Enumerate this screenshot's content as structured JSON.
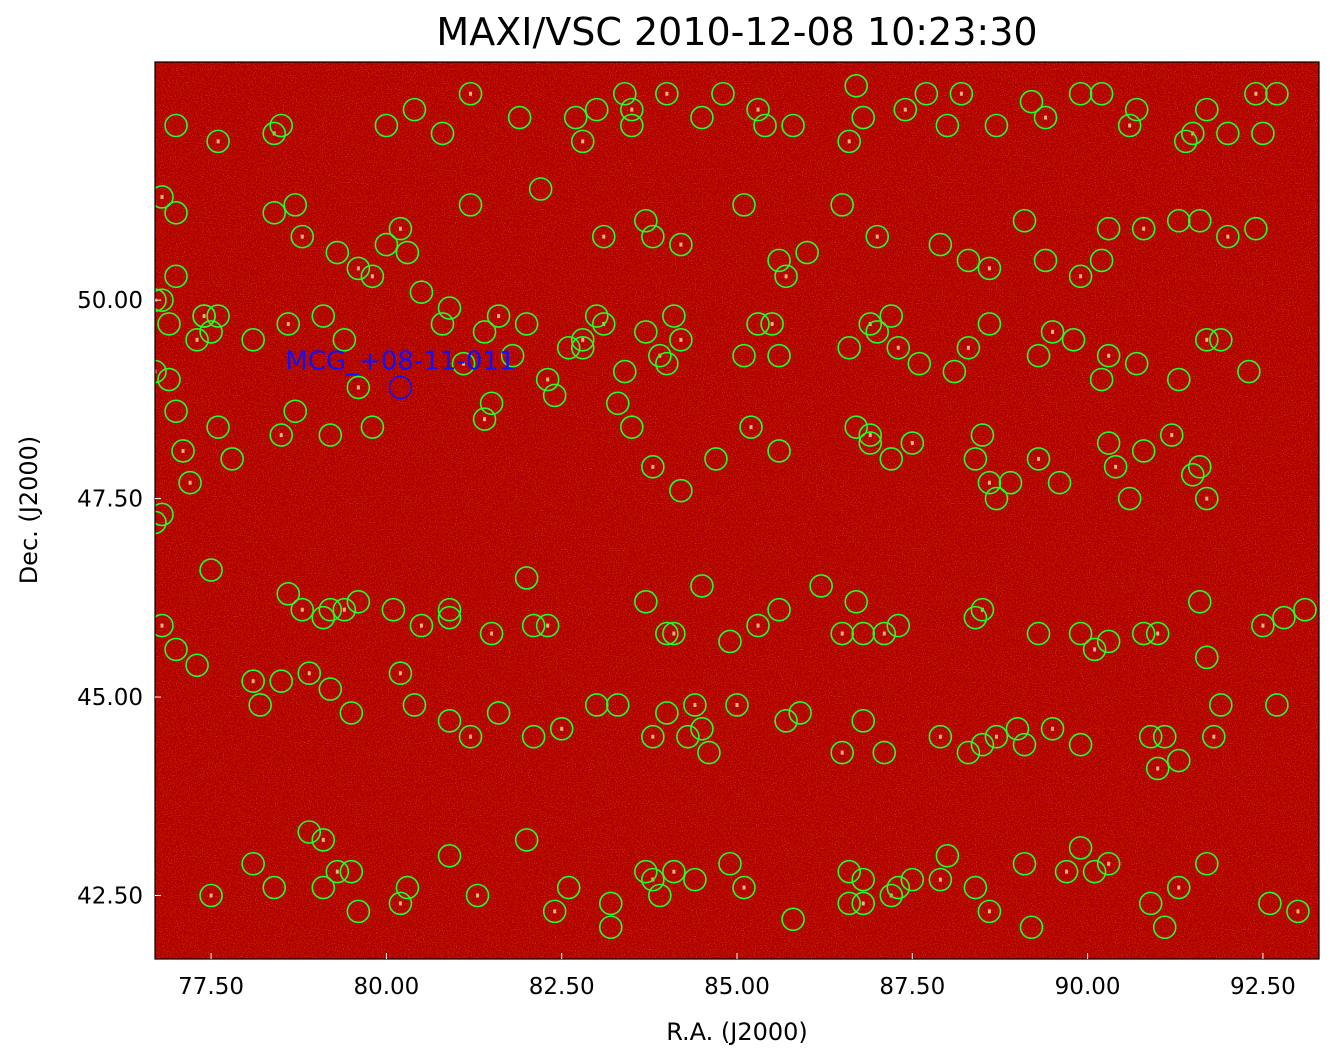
{
  "chart_data": {
    "type": "scatter",
    "title": "MAXI/VSC 2010-12-08 10:23:30",
    "xlabel": "R.A. (J2000)",
    "ylabel": "Dec. (J2000)",
    "xlim": [
      76.7,
      93.3
    ],
    "ylim": [
      41.7,
      53.0
    ],
    "x_reversed": false,
    "grid": false,
    "xticks": [
      "77.50",
      "80.00",
      "82.50",
      "85.00",
      "87.50",
      "90.00",
      "92.50"
    ],
    "yticks": [
      "42.50",
      "45.00",
      "47.50",
      "50.00"
    ],
    "background_color": "#b00000",
    "catalog_color": "#22ff22",
    "target_color": "#1010ff",
    "target": {
      "name": "MCG_+08-11-011",
      "ra": 80.2,
      "dec": 48.9
    },
    "series": [
      {
        "marker": "open-circle",
        "x": [
          77.6,
          77.0,
          78.5,
          78.4,
          80.0,
          80.4,
          81.2,
          80.8,
          81.9,
          83.5,
          82.7,
          83.4,
          84.0,
          83.5,
          83.0,
          82.8,
          84.5,
          84.8,
          85.3,
          85.4,
          85.8,
          86.6,
          86.7,
          86.8,
          87.4,
          87.7,
          88.0,
          88.2,
          88.7,
          89.2,
          89.4,
          89.9,
          90.2,
          90.6,
          90.7,
          91.4,
          91.5,
          91.7,
          92.0,
          92.4,
          92.5,
          92.7,
          76.8,
          77.0,
          78.4,
          78.8,
          78.7,
          79.3,
          79.6,
          80.0,
          80.3,
          80.2,
          81.2,
          82.2,
          83.1,
          83.7,
          83.8,
          84.2,
          85.1,
          85.6,
          85.7,
          86.0,
          86.5,
          87.0,
          87.9,
          88.3,
          88.6,
          89.1,
          89.4,
          89.9,
          90.2,
          90.3,
          90.8,
          91.3,
          91.6,
          92.0,
          92.4,
          76.8,
          76.7,
          77.4,
          77.5,
          77.4,
          77.0,
          76.9,
          77.3,
          77.6,
          78.1,
          78.6,
          79.1,
          79.4,
          79.8,
          80.5,
          80.8,
          81.1,
          80.9,
          81.4,
          81.6,
          81.8,
          82.0,
          82.3,
          82.4,
          82.6,
          82.8,
          82.8,
          83.0,
          83.1,
          83.4,
          83.7,
          83.9,
          84.1,
          84.0,
          84.2,
          85.1,
          85.3,
          85.5,
          85.6,
          86.6,
          86.9,
          87.0,
          87.2,
          87.3,
          87.6,
          88.1,
          88.3,
          88.6,
          89.3,
          89.5,
          89.8,
          90.2,
          90.3,
          90.7,
          91.3,
          91.7,
          91.9,
          92.3,
          76.7,
          76.9,
          77.0,
          77.1,
          77.6,
          77.8,
          78.5,
          78.7,
          79.2,
          79.6,
          79.8,
          81.5,
          81.4,
          83.3,
          83.5,
          83.8,
          84.2,
          84.7,
          85.2,
          85.6,
          86.7,
          86.9,
          86.9,
          87.2,
          87.5,
          88.4,
          88.5,
          88.6,
          88.7,
          88.9,
          89.3,
          89.6,
          90.3,
          90.4,
          90.6,
          90.8,
          91.2,
          91.5,
          91.6,
          91.7,
          76.7,
          76.8,
          77.2,
          77.5,
          78.6,
          78.8,
          79.1,
          79.2,
          79.4,
          79.6,
          80.1,
          80.5,
          80.9,
          80.9,
          81.5,
          82.0,
          82.1,
          82.3,
          83.7,
          84.0,
          84.1,
          84.5,
          84.9,
          85.3,
          85.6,
          86.2,
          86.5,
          86.7,
          86.8,
          87.1,
          87.3,
          88.4,
          88.5,
          89.3,
          89.9,
          90.1,
          90.3,
          90.8,
          91.0,
          91.6,
          91.7,
          92.5,
          92.8,
          93.1,
          76.8,
          77.0,
          77.3,
          78.1,
          78.2,
          78.5,
          78.9,
          79.2,
          79.5,
          80.2,
          80.4,
          80.9,
          81.2,
          81.6,
          82.1,
          82.5,
          83.0,
          83.3,
          83.8,
          84.0,
          84.3,
          84.4,
          84.5,
          84.6,
          85.0,
          85.7,
          85.9,
          86.5,
          86.8,
          87.1,
          87.9,
          88.3,
          88.5,
          88.7,
          89.0,
          89.1,
          89.5,
          89.9,
          90.9,
          91.0,
          91.1,
          91.3,
          91.8,
          91.9,
          92.7,
          77.5,
          78.1,
          78.4,
          79.1,
          78.9,
          79.1,
          79.3,
          79.5,
          79.6,
          80.2,
          80.3,
          80.9,
          81.3,
          82.0,
          82.6,
          82.4,
          83.2,
          83.2,
          83.8,
          83.7,
          83.9,
          84.1,
          84.4,
          84.9,
          85.1,
          85.8,
          86.6,
          86.8,
          86.6,
          86.8,
          87.2,
          87.3,
          87.5,
          87.9,
          88.0,
          88.4,
          88.6,
          89.1,
          89.2,
          89.7,
          89.9,
          90.1,
          90.3,
          90.9,
          91.1,
          91.3,
          91.7,
          92.6,
          93.0
        ],
        "y": [
          52.0,
          52.2,
          52.2,
          52.1,
          52.2,
          52.4,
          52.6,
          52.1,
          52.3,
          52.4,
          52.3,
          52.6,
          52.6,
          52.2,
          52.4,
          52.0,
          52.3,
          52.6,
          52.4,
          52.2,
          52.2,
          52.0,
          52.7,
          52.3,
          52.4,
          52.6,
          52.2,
          52.6,
          52.2,
          52.5,
          52.3,
          52.6,
          52.6,
          52.2,
          52.4,
          52.0,
          52.1,
          52.4,
          52.1,
          52.6,
          52.1,
          52.6,
          51.3,
          51.1,
          51.1,
          50.8,
          51.2,
          50.6,
          50.4,
          50.7,
          50.6,
          50.9,
          51.2,
          51.4,
          50.8,
          51.0,
          50.8,
          50.7,
          51.2,
          50.5,
          50.3,
          50.6,
          51.2,
          50.8,
          50.7,
          50.5,
          50.4,
          51.0,
          50.5,
          50.3,
          50.5,
          50.9,
          50.9,
          51.0,
          51.0,
          50.8,
          50.9,
          50.0,
          50.0,
          49.8,
          49.6,
          49.8,
          50.3,
          49.7,
          49.5,
          49.8,
          49.5,
          49.7,
          49.8,
          49.5,
          50.3,
          50.1,
          49.7,
          49.2,
          49.9,
          49.6,
          49.8,
          49.3,
          49.7,
          49.0,
          48.8,
          49.4,
          49.5,
          49.4,
          49.8,
          49.7,
          49.1,
          49.6,
          49.3,
          49.8,
          49.2,
          49.5,
          49.3,
          49.7,
          49.7,
          49.3,
          49.4,
          49.7,
          49.6,
          49.8,
          49.4,
          49.2,
          49.1,
          49.4,
          49.7,
          49.3,
          49.6,
          49.5,
          49.0,
          49.3,
          49.2,
          49.0,
          49.5,
          49.5,
          49.1,
          49.1,
          49.0,
          48.6,
          48.1,
          48.4,
          48.0,
          48.3,
          48.6,
          48.3,
          48.9,
          48.4,
          48.7,
          48.5,
          48.7,
          48.4,
          47.9,
          47.6,
          48.0,
          48.4,
          48.1,
          48.4,
          48.3,
          48.2,
          48.0,
          48.2,
          48.0,
          48.3,
          47.7,
          47.5,
          47.7,
          48.0,
          47.7,
          48.2,
          47.9,
          47.5,
          48.1,
          48.3,
          47.8,
          47.9,
          47.5,
          47.2,
          47.3,
          47.7,
          46.6,
          46.3,
          46.1,
          46.0,
          46.1,
          46.1,
          46.2,
          46.1,
          45.9,
          46.0,
          46.1,
          45.8,
          46.5,
          45.9,
          45.9,
          46.2,
          45.8,
          45.8,
          46.4,
          45.7,
          45.9,
          46.1,
          46.4,
          45.8,
          46.2,
          45.8,
          45.8,
          45.9,
          46.0,
          46.1,
          45.8,
          45.8,
          45.6,
          45.7,
          45.8,
          45.8,
          46.2,
          45.5,
          45.9,
          46.0,
          46.1,
          45.9,
          45.6,
          45.4,
          45.2,
          44.9,
          45.2,
          45.3,
          45.1,
          44.8,
          45.3,
          44.9,
          44.7,
          44.5,
          44.8,
          44.5,
          44.6,
          44.9,
          44.9,
          44.5,
          44.8,
          44.5,
          44.9,
          44.6,
          44.3,
          44.9,
          44.7,
          44.8,
          44.3,
          44.7,
          44.3,
          44.5,
          44.3,
          44.4,
          44.5,
          44.6,
          44.4,
          44.6,
          44.4,
          44.5,
          44.1,
          44.5,
          44.2,
          44.5,
          44.9,
          44.9,
          42.5,
          42.9,
          42.6,
          43.2,
          43.3,
          42.6,
          42.8,
          42.8,
          42.3,
          42.4,
          42.6,
          43.0,
          42.5,
          43.2,
          42.6,
          42.3,
          42.1,
          42.4,
          42.7,
          42.8,
          42.5,
          42.8,
          42.7,
          42.9,
          42.6,
          42.2,
          42.8,
          42.4,
          42.4,
          42.7,
          42.5,
          42.6,
          42.7,
          42.7,
          43.0,
          42.6,
          42.3,
          42.9,
          42.1,
          42.8,
          43.1,
          42.8,
          42.9,
          42.4,
          42.1,
          42.6,
          42.9,
          42.4,
          42.3
        ]
      }
    ]
  }
}
